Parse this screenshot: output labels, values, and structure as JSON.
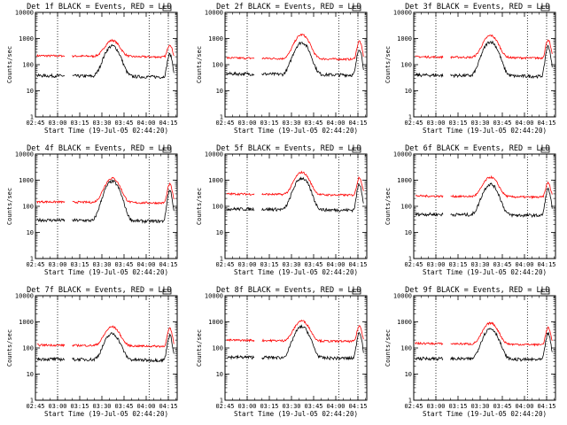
{
  "chart_data": {
    "type": "line",
    "grid": "none",
    "series_colors": {
      "events": "#000000",
      "lld": "#ff0000"
    },
    "x_ticks": [
      "02:45",
      "03:00",
      "03:15",
      "03:30",
      "03:45",
      "04:00",
      "04:15"
    ],
    "y_ticks": [
      "1",
      "10",
      "100",
      "1000",
      "10000"
    ],
    "ylim": [
      1,
      10000
    ],
    "y_scale": "log",
    "x_range_minutes": [
      0,
      96
    ],
    "dotted_markers_minutes": [
      15,
      77,
      90
    ],
    "ylabel": "Counts/sec",
    "xlabel": "Start Time (19-Jul-05 02:44:20)",
    "panels": [
      {
        "title": "Det 1f BLACK = Events, RED = LLD",
        "lld_base": 220,
        "lld_peak": 850,
        "ev_base": 38,
        "ev_peak": 520,
        "end_lld": 600,
        "end_ev": 250
      },
      {
        "title": "Det 2f BLACK = Events, RED = LLD",
        "lld_base": 180,
        "lld_peak": 1400,
        "ev_base": 45,
        "ev_peak": 700,
        "end_lld": 800,
        "end_ev": 400
      },
      {
        "title": "Det 3f BLACK = Events, RED = LLD",
        "lld_base": 200,
        "lld_peak": 1300,
        "ev_base": 40,
        "ev_peak": 750,
        "end_lld": 900,
        "end_ev": 500
      },
      {
        "title": "Det 4f BLACK = Events, RED = LLD",
        "lld_base": 150,
        "lld_peak": 1200,
        "ev_base": 30,
        "ev_peak": 900,
        "end_lld": 700,
        "end_ev": 400
      },
      {
        "title": "Det 5f BLACK = Events, RED = LLD",
        "lld_base": 300,
        "lld_peak": 2000,
        "ev_base": 80,
        "ev_peak": 1200,
        "end_lld": 1300,
        "end_ev": 700
      },
      {
        "title": "Det 6f BLACK = Events, RED = LLD",
        "lld_base": 250,
        "lld_peak": 1300,
        "ev_base": 50,
        "ev_peak": 700,
        "end_lld": 800,
        "end_ev": 450
      },
      {
        "title": "Det 7f BLACK = Events, RED = LLD",
        "lld_base": 130,
        "lld_peak": 650,
        "ev_base": 38,
        "ev_peak": 350,
        "end_lld": 550,
        "end_ev": 300
      },
      {
        "title": "Det 8f BLACK = Events, RED = LLD",
        "lld_base": 200,
        "lld_peak": 1100,
        "ev_base": 45,
        "ev_peak": 650,
        "end_lld": 700,
        "end_ev": 400
      },
      {
        "title": "Det 9f BLACK = Events, RED = LLD",
        "lld_base": 150,
        "lld_peak": 900,
        "ev_base": 40,
        "ev_peak": 550,
        "end_lld": 600,
        "end_ev": 350
      }
    ]
  }
}
